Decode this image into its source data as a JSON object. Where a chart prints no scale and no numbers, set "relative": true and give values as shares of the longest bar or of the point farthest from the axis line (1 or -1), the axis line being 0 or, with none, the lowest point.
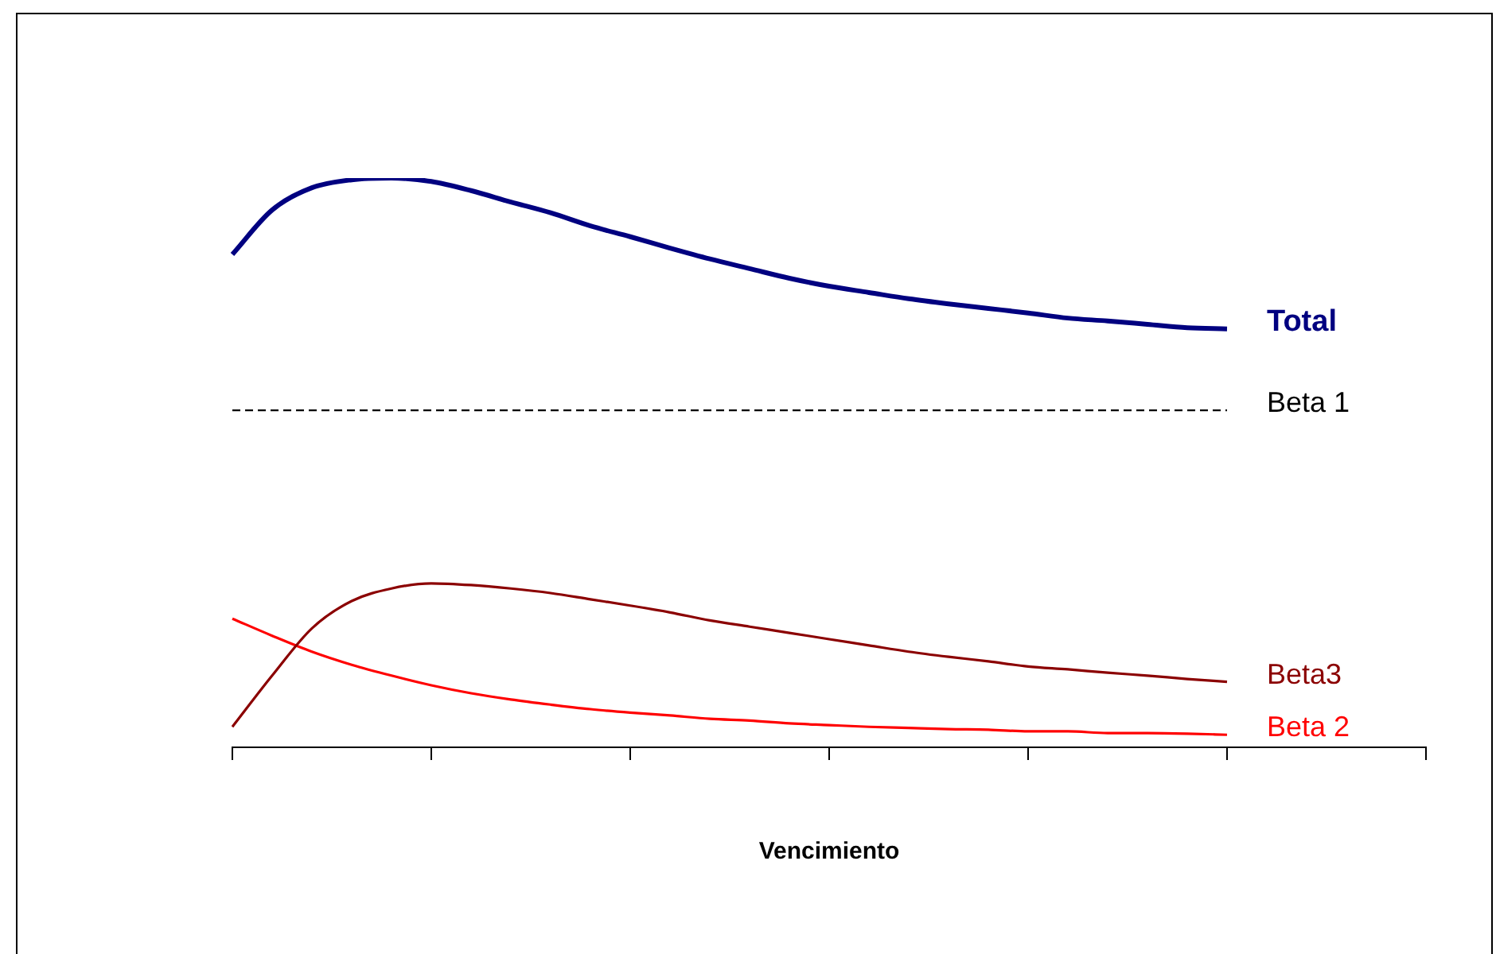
{
  "chart_data": {
    "type": "line",
    "xlabel": "Vencimiento",
    "relative": true,
    "grid": false,
    "marker": "none",
    "categories": [
      null,
      null,
      null,
      null,
      null,
      null,
      null,
      null,
      null,
      null,
      null,
      null,
      null,
      null,
      null,
      null,
      null,
      null,
      null,
      null,
      null,
      null,
      null,
      null,
      null,
      null,
      null,
      null,
      null,
      null,
      null
    ],
    "series": [
      {
        "name": "Total",
        "color": "#000080",
        "values": [
          0.866,
          0.944,
          0.983,
          0.997,
          1.0,
          0.994,
          0.978,
          0.958,
          0.939,
          0.916,
          0.897,
          0.877,
          0.858,
          0.841,
          0.824,
          0.81,
          0.799,
          0.788,
          0.779,
          0.771,
          0.763,
          0.754,
          0.749,
          0.743,
          0.737,
          0.735,
          null,
          null,
          null,
          null,
          null
        ]
      },
      {
        "name": "Beta 1",
        "color": "#000000",
        "line_style": "dashed",
        "values": [
          0.592,
          0.592,
          0.592,
          0.592,
          0.592,
          0.592,
          0.592,
          0.592,
          0.592,
          0.592,
          0.592,
          0.592,
          0.592,
          0.592,
          0.592,
          0.592,
          0.592,
          0.592,
          0.592,
          0.592,
          0.592,
          0.592,
          0.592,
          0.592,
          0.592,
          0.592,
          null,
          null,
          null,
          null,
          null
        ]
      },
      {
        "name": "Beta3",
        "color": "#8b0000",
        "values": [
          0.036,
          0.126,
          0.209,
          0.257,
          0.279,
          0.288,
          0.285,
          0.279,
          0.271,
          0.26,
          0.249,
          0.237,
          0.223,
          0.212,
          0.201,
          0.19,
          0.179,
          0.168,
          0.159,
          0.151,
          0.142,
          0.137,
          0.131,
          0.126,
          0.12,
          0.115,
          null,
          null,
          null,
          null,
          null
        ]
      },
      {
        "name": "Beta 2",
        "color": "#ff0000",
        "values": [
          0.226,
          0.196,
          0.168,
          0.145,
          0.126,
          0.109,
          0.095,
          0.084,
          0.075,
          0.067,
          0.061,
          0.056,
          0.05,
          0.047,
          0.042,
          0.039,
          0.036,
          0.034,
          0.032,
          0.031,
          0.028,
          0.028,
          0.025,
          0.025,
          0.024,
          0.022,
          null,
          null,
          null,
          null,
          null
        ]
      }
    ]
  }
}
